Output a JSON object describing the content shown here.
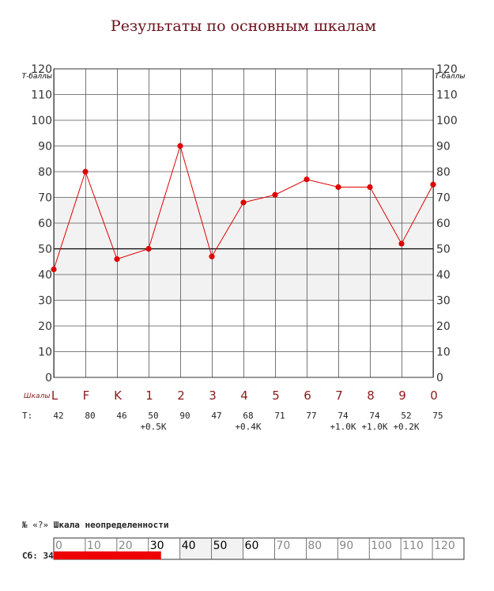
{
  "chart_data": {
    "type": "line",
    "title": "Результаты по основным шкалам",
    "y_unit_left": "Т-баллы",
    "y_unit_right": "Т-баллы",
    "ylim": [
      0,
      120
    ],
    "yticks": [
      0,
      10,
      20,
      30,
      40,
      50,
      60,
      70,
      80,
      90,
      100,
      110,
      120
    ],
    "normal_band": [
      30,
      70
    ],
    "reference_line": 50,
    "grid": true,
    "scales_word": "Шкалы",
    "categories": [
      "L",
      "F",
      "K",
      "1",
      "2",
      "3",
      "4",
      "5",
      "6",
      "7",
      "8",
      "9",
      "0"
    ],
    "series": [
      {
        "values": [
          42,
          80,
          46,
          50,
          90,
          47,
          68,
          71,
          77,
          74,
          74,
          52,
          75
        ],
        "color": "#e00000"
      }
    ],
    "t_row_label": "Т:",
    "t_values": [
      "42",
      "80",
      "46",
      "50",
      "90",
      "47",
      "68",
      "71",
      "77",
      "74",
      "74",
      "52",
      "75"
    ],
    "k_corrections": [
      "",
      "",
      "",
      "+0.5K",
      "",
      "",
      "+0.4K",
      "",
      "",
      "+1.0K",
      "+1.0K",
      "+0.2K",
      ""
    ]
  },
  "uncertainty": {
    "title_prefix": "№ «?»",
    "title": "Шкала неопределенности",
    "raw_label": "Сб: 34",
    "raw_value": 34,
    "ticks": [
      "0",
      "10",
      "20",
      "30",
      "40",
      "50",
      "60",
      "70",
      "80",
      "90",
      "100",
      "110",
      "120"
    ],
    "bar_color": "#ee0000"
  }
}
